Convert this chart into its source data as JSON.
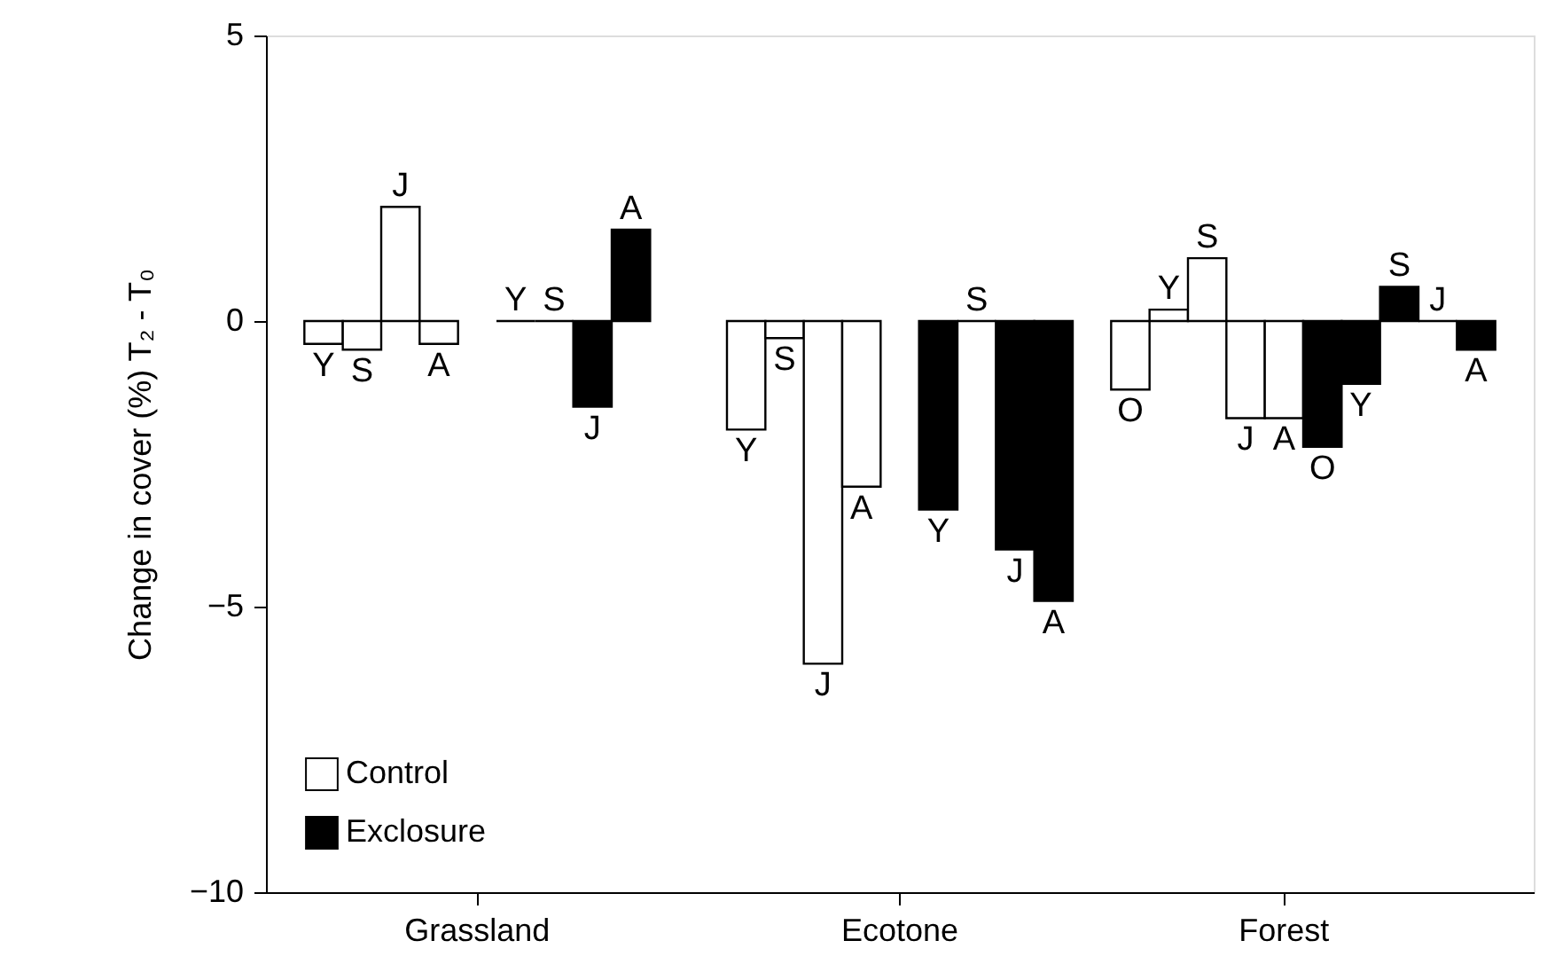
{
  "chart_data": {
    "type": "bar",
    "ylabel": "Change in cover (%) T₂ - T₀",
    "categories": [
      null,
      null,
      null,
      null,
      null,
      "Grassland",
      null,
      null,
      null,
      null,
      null,
      null,
      null,
      null,
      null,
      null,
      "Ecotone",
      null,
      null,
      null,
      null,
      null,
      null,
      null,
      null,
      null,
      "Forest",
      null,
      null,
      null,
      null,
      null,
      null
    ],
    "series": [
      {
        "name": "Control",
        "color": "#ffffff",
        "values": [
          null,
          -0.4,
          -0.5,
          2.0,
          -0.4,
          null,
          null,
          null,
          null,
          null,
          null,
          null,
          -1.9,
          -0.3,
          -6.0,
          -2.9,
          null,
          null,
          null,
          null,
          null,
          null,
          -1.2,
          0.2,
          1.1,
          -1.7,
          -1.7,
          null,
          null,
          null,
          null,
          null,
          null
        ],
        "value_labels": [
          null,
          "Y",
          "S",
          "J",
          "A",
          null,
          null,
          null,
          null,
          null,
          null,
          null,
          "Y",
          "S",
          "J",
          "A",
          null,
          null,
          null,
          null,
          null,
          null,
          "O",
          "Y",
          "S",
          "J",
          "A",
          null,
          null,
          null,
          null,
          null,
          null
        ]
      },
      {
        "name": "Exclosure",
        "color": "#000000",
        "values": [
          null,
          null,
          null,
          null,
          null,
          null,
          0,
          0,
          -1.5,
          1.6,
          null,
          null,
          null,
          null,
          null,
          null,
          null,
          -3.3,
          0,
          -4.0,
          -4.9,
          null,
          null,
          null,
          null,
          null,
          null,
          -2.2,
          -1.1,
          0.6,
          0,
          -0.5,
          null
        ],
        "value_labels": [
          null,
          null,
          null,
          null,
          null,
          null,
          "Y",
          "S",
          "J",
          "A",
          null,
          null,
          null,
          null,
          null,
          null,
          null,
          "Y",
          "S",
          "J",
          "A",
          null,
          null,
          null,
          null,
          null,
          null,
          "O",
          "Y",
          "S",
          "J",
          "A",
          null
        ]
      }
    ],
    "ylim": [
      -10,
      5
    ],
    "yticks": [
      -10,
      -5,
      0,
      5
    ],
    "legend": "bottom left",
    "grid": false
  }
}
